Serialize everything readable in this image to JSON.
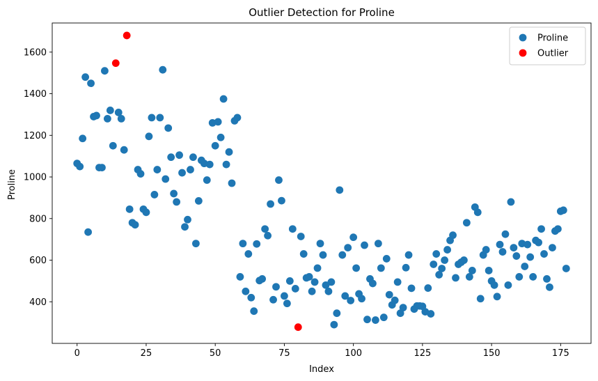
{
  "chart_data": {
    "type": "scatter",
    "title": "Outlier Detection for Proline",
    "xlabel": "Index",
    "ylabel": "Proline",
    "xlim": [
      -9,
      186
    ],
    "ylim": [
      200,
      1740
    ],
    "xticks": [
      0,
      25,
      50,
      75,
      100,
      125,
      150,
      175
    ],
    "yticks": [
      400,
      600,
      800,
      1000,
      1200,
      1400,
      1600
    ],
    "grid": false,
    "legend": {
      "placement": "top-right"
    },
    "series": [
      {
        "name": "Proline",
        "color": "#1f77b4",
        "x": [
          0,
          1,
          2,
          3,
          4,
          5,
          6,
          7,
          8,
          9,
          10,
          11,
          12,
          13,
          15,
          16,
          17,
          19,
          20,
          21,
          22,
          23,
          24,
          25,
          26,
          27,
          28,
          29,
          30,
          31,
          32,
          33,
          34,
          35,
          36,
          37,
          38,
          39,
          40,
          41,
          42,
          43,
          44,
          45,
          46,
          47,
          48,
          49,
          50,
          51,
          52,
          53,
          54,
          55,
          56,
          57,
          58,
          59,
          60,
          61,
          62,
          63,
          64,
          65,
          66,
          67,
          68,
          69,
          70,
          71,
          72,
          73,
          74,
          75,
          76,
          77,
          78,
          79,
          81,
          82,
          83,
          84,
          85,
          86,
          87,
          88,
          89,
          90,
          91,
          92,
          93,
          94,
          95,
          96,
          97,
          98,
          99,
          100,
          101,
          102,
          103,
          104,
          105,
          106,
          107,
          108,
          109,
          110,
          111,
          112,
          113,
          114,
          115,
          116,
          117,
          118,
          119,
          120,
          121,
          122,
          123,
          124,
          125,
          126,
          127,
          128,
          129,
          130,
          131,
          132,
          133,
          134,
          135,
          136,
          137,
          138,
          139,
          140,
          141,
          142,
          143,
          144,
          145,
          146,
          147,
          148,
          149,
          150,
          151,
          152,
          153,
          154,
          155,
          156,
          157,
          158,
          159,
          160,
          161,
          162,
          163,
          164,
          165,
          166,
          167,
          168,
          169,
          170,
          171,
          172,
          173,
          174,
          175,
          176,
          177
        ],
        "y": [
          1065,
          1050,
          1185,
          1480,
          735,
          1450,
          1290,
          1295,
          1045,
          1045,
          1510,
          1280,
          1320,
          1150,
          1310,
          1280,
          1130,
          845,
          780,
          770,
          1035,
          1015,
          845,
          830,
          1195,
          1285,
          915,
          1035,
          1285,
          1515,
          990,
          1235,
          1095,
          920,
          880,
          1105,
          1020,
          760,
          795,
          1035,
          1095,
          680,
          885,
          1080,
          1065,
          985,
          1060,
          1260,
          1150,
          1265,
          1190,
          1375,
          1060,
          1120,
          970,
          1270,
          1285,
          520,
          680,
          450,
          630,
          420,
          355,
          678,
          502,
          510,
          750,
          718,
          870,
          410,
          472,
          985,
          886,
          428,
          392,
          500,
          750,
          463,
          714,
          630,
          515,
          520,
          450,
          495,
          562,
          680,
          625,
          480,
          450,
          495,
          290,
          345,
          937,
          625,
          428,
          660,
          406,
          710,
          562,
          438,
          415,
          672,
          315,
          510,
          488,
          312,
          680,
          562,
          325,
          607,
          434,
          385,
          407,
          495,
          345,
          372,
          564,
          625,
          465,
          365,
          380,
          380,
          378,
          352,
          466,
          342,
          580,
          630,
          530,
          560,
          600,
          650,
          695,
          720,
          515,
          580,
          590,
          600,
          780,
          520,
          550,
          855,
          830,
          415,
          625,
          650,
          550,
          500,
          480,
          425,
          675,
          640,
          725,
          480,
          880,
          660,
          620,
          520,
          680,
          570,
          675,
          615,
          520,
          695,
          685,
          750,
          630,
          510,
          470,
          660,
          740,
          750,
          835,
          840,
          560
        ]
      },
      {
        "name": "Outlier",
        "color": "#ff0000",
        "x": [
          14,
          18,
          80
        ],
        "y": [
          1547,
          1680,
          278
        ]
      }
    ]
  }
}
